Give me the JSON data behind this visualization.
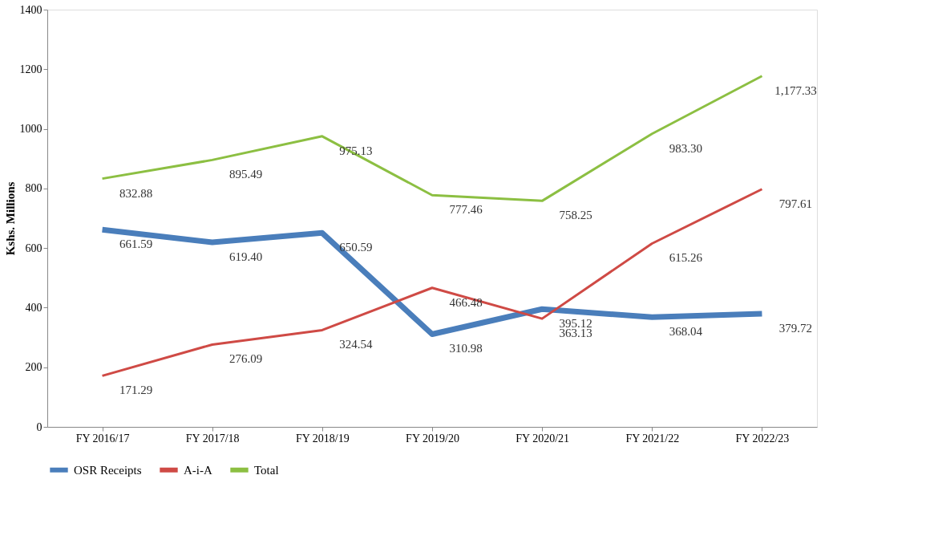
{
  "chart_data": {
    "type": "line",
    "ylabel": "Kshs. Millions",
    "categories": [
      "FY 2016/17",
      "FY 2017/18",
      "FY 2018/19",
      "FY 2019/20",
      "FY 2020/21",
      "FY 2021/22",
      "FY 2022/23"
    ],
    "series": [
      {
        "name": "OSR Receipts",
        "color": "#4a7ebb",
        "values": [
          661.59,
          619.4,
          650.59,
          310.98,
          395.12,
          368.04,
          379.72
        ],
        "value_labels": [
          "661.59",
          "619.40",
          "650.59",
          "310.98",
          "395.12",
          "368.04",
          "379.72"
        ]
      },
      {
        "name": "A-i-A",
        "color": "#cf4a45",
        "values": [
          171.29,
          276.09,
          324.54,
          466.48,
          363.13,
          615.26,
          797.61
        ],
        "value_labels": [
          "171.29",
          "276.09",
          "324.54",
          "466.48",
          "363.13",
          "615.26",
          "797.61"
        ]
      },
      {
        "name": "Total",
        "color": "#8cbf42",
        "values": [
          832.88,
          895.49,
          975.13,
          777.46,
          758.25,
          983.3,
          1177.33
        ],
        "value_labels": [
          "832.88",
          "895.49",
          "975.13",
          "777.46",
          "758.25",
          "983.30",
          "1,177.33"
        ]
      }
    ],
    "ylim": [
      0,
      1400
    ],
    "yticks": [
      0,
      200,
      400,
      600,
      800,
      1000,
      1200,
      1400
    ],
    "grid": false,
    "legend": "bottom",
    "marker": "none",
    "line_style": "solid"
  }
}
